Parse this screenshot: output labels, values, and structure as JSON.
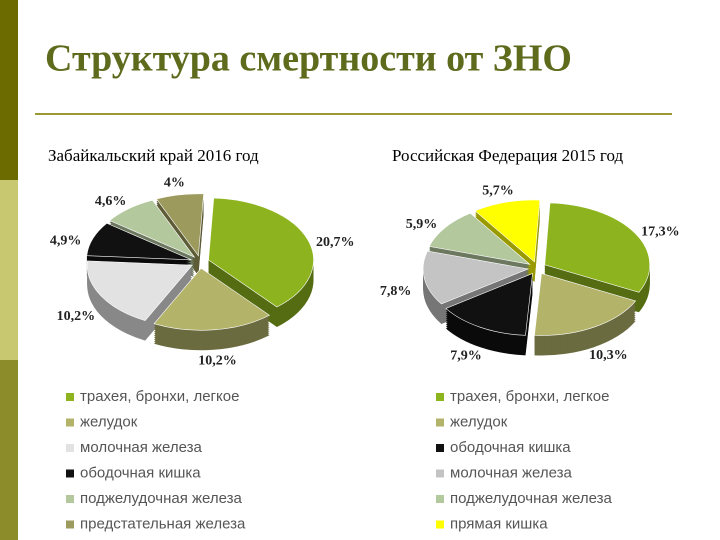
{
  "title": "Структура смертности от ЗНО",
  "chart_data": [
    {
      "type": "pie",
      "title": "Забайкальский край 2016 год",
      "categories": [
        "трахея, бронхи, легкое",
        "желудок",
        "молочная железа",
        "ободочная кишка",
        "поджелудочная железа",
        "предстательная железа"
      ],
      "values": [
        20.7,
        10.2,
        10.2,
        4.9,
        4.6,
        4
      ],
      "value_labels": [
        "20,7%",
        "10,2%",
        "10,2%",
        "4,9%",
        "4,6%",
        "4%"
      ],
      "colors": [
        "#8db41e",
        "#b3b36a",
        "#e2e2e2",
        "#111111",
        "#b4c89e",
        "#9c9a5c"
      ]
    },
    {
      "type": "pie",
      "title": "Российская Федерация 2015 год",
      "categories": [
        "трахея, бронхи, легкое",
        "желудок",
        "ободочная кишка",
        "молочная железа",
        "поджелудочная железа",
        "прямая кишка"
      ],
      "values": [
        17.3,
        10.3,
        7.9,
        7.8,
        5.9,
        5.7
      ],
      "value_labels": [
        "17,3%",
        "10,3%",
        "7,9%",
        "7,8%",
        "5,9%",
        "5,7%"
      ],
      "colors": [
        "#8db41e",
        "#b3b36a",
        "#111111",
        "#c4c4c4",
        "#b4c89e",
        "#ffff00"
      ]
    }
  ]
}
